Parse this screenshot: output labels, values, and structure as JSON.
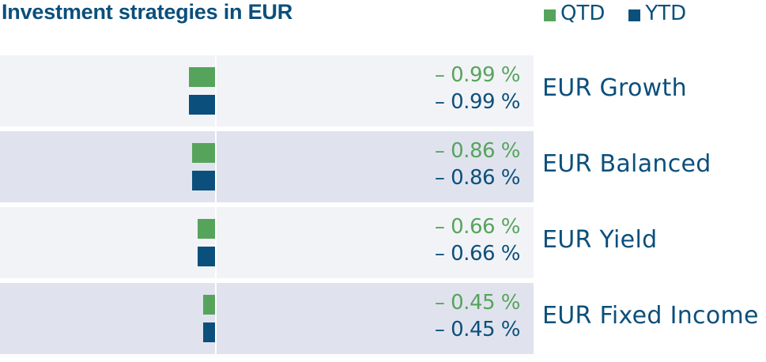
{
  "chart_data": {
    "type": "bar",
    "title": "Investment strategies in EUR",
    "unit": "%",
    "colors": {
      "QTD": "#56a45c",
      "YTD": "#0b4f7c",
      "row_light": "#f2f3f7",
      "row_dark": "#e0e3ee"
    },
    "legend": [
      {
        "name": "QTD",
        "color": "#56a45c"
      },
      {
        "name": "YTD",
        "color": "#0b4f7c"
      }
    ],
    "legend_position": "top-right",
    "categories": [
      "EUR Growth",
      "EUR Balanced",
      "EUR Yield",
      "EUR Fixed Income"
    ],
    "series": [
      {
        "name": "QTD",
        "values": [
          -0.99,
          -0.86,
          -0.66,
          -0.45
        ],
        "labels": [
          "– 0.99 %",
          "– 0.86 %",
          "– 0.66 %",
          "– 0.45 %"
        ]
      },
      {
        "name": "YTD",
        "values": [
          -0.99,
          -0.86,
          -0.66,
          -0.45
        ],
        "labels": [
          "– 0.99 %",
          "– 0.86 %",
          "– 0.66 %",
          "– 0.45 %"
        ]
      }
    ]
  }
}
